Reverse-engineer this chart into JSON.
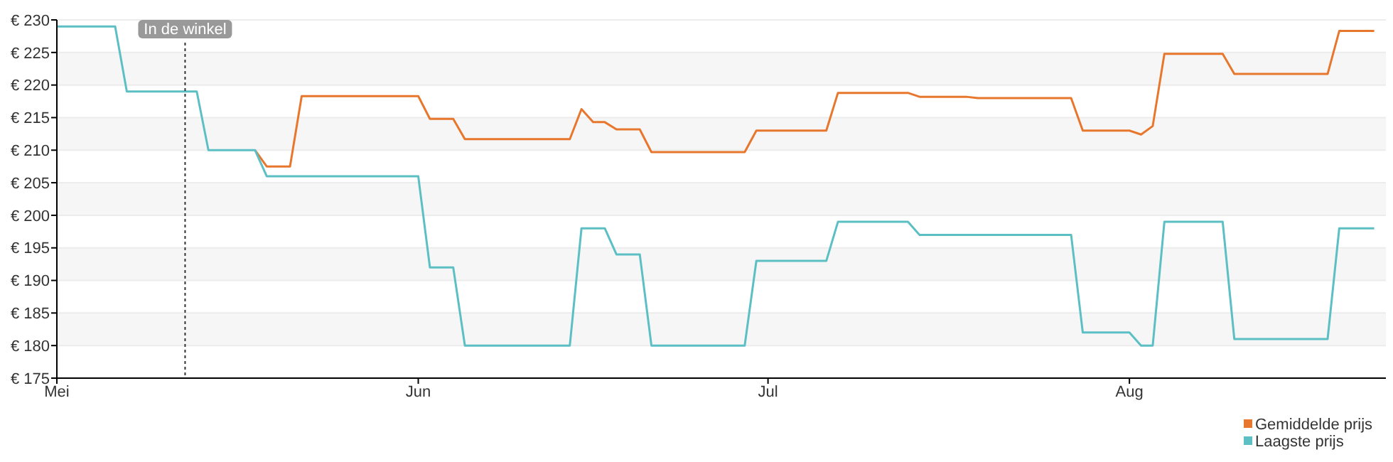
{
  "chart_data": {
    "type": "line",
    "xlim": [
      "--05-01",
      "--08-23"
    ],
    "xticks": [
      {
        "value": "--05-01",
        "label": "Mei"
      },
      {
        "value": "--06-01",
        "label": "Jun"
      },
      {
        "value": "--07-01",
        "label": "Jul"
      },
      {
        "value": "--08-01",
        "label": "Aug"
      }
    ],
    "ylim": [
      175,
      230
    ],
    "yticks": [
      {
        "value": 175,
        "label": "€ 175"
      },
      {
        "value": 180,
        "label": "€ 180"
      },
      {
        "value": 185,
        "label": "€ 185"
      },
      {
        "value": 190,
        "label": "€ 190"
      },
      {
        "value": 195,
        "label": "€ 195"
      },
      {
        "value": 200,
        "label": "€ 200"
      },
      {
        "value": 205,
        "label": "€ 205"
      },
      {
        "value": 210,
        "label": "€ 210"
      },
      {
        "value": 215,
        "label": "€ 215"
      },
      {
        "value": 220,
        "label": "€ 220"
      },
      {
        "value": 225,
        "label": "€ 225"
      },
      {
        "value": 230,
        "label": "€ 230"
      }
    ],
    "grid": "y",
    "legend": "bottom right",
    "marker": "none",
    "line_style": "solid",
    "ref_lines": [
      {
        "axis": "x",
        "value": "--05-12",
        "label": "In de winkel",
        "color": "#333333",
        "line_style": "dotted"
      }
    ],
    "series": [
      {
        "name": "Gemiddelde prijs",
        "color": "#e8772e",
        "x": [
          "--05-18",
          "--05-19",
          "--05-21",
          "--05-22",
          "--06-01",
          "--06-02",
          "--06-04",
          "--06-05",
          "--06-14",
          "--06-15",
          "--06-16",
          "--06-17",
          "--06-18",
          "--06-20",
          "--06-21",
          "--06-29",
          "--06-30",
          "--07-06",
          "--07-07",
          "--07-13",
          "--07-14",
          "--07-18",
          "--07-19",
          "--07-27",
          "--07-28",
          "--08-01",
          "--08-02",
          "--08-03",
          "--08-04",
          "--08-09",
          "--08-10",
          "--08-18",
          "--08-19",
          "--08-22"
        ],
        "values": [
          210,
          207.5,
          207.5,
          218.3,
          218.3,
          214.8,
          214.8,
          211.7,
          211.7,
          216.3,
          214.3,
          214.3,
          213.2,
          213.2,
          209.7,
          209.7,
          213,
          213,
          218.8,
          218.8,
          218.2,
          218.2,
          218,
          218,
          213,
          213,
          212.4,
          213.7,
          224.8,
          224.8,
          221.7,
          221.7,
          228.3,
          228.3
        ]
      },
      {
        "name": "Laagste prijs",
        "color": "#5bbfc4",
        "x": [
          "--05-01",
          "--05-06",
          "--05-07",
          "--05-13",
          "--05-14",
          "--05-18",
          "--05-19",
          "--06-01",
          "--06-02",
          "--06-04",
          "--06-05",
          "--06-14",
          "--06-15",
          "--06-17",
          "--06-18",
          "--06-20",
          "--06-21",
          "--06-29",
          "--06-30",
          "--07-06",
          "--07-07",
          "--07-13",
          "--07-14",
          "--07-27",
          "--07-28",
          "--08-01",
          "--08-02",
          "--08-03",
          "--08-04",
          "--08-09",
          "--08-10",
          "--08-18",
          "--08-19",
          "--08-22"
        ],
        "values": [
          229,
          229,
          219,
          219,
          210,
          210,
          206,
          206,
          192,
          192,
          180,
          180,
          198,
          198,
          194,
          194,
          180,
          180,
          193,
          193,
          199,
          199,
          197,
          197,
          182,
          182,
          180,
          180,
          199,
          199,
          181,
          181,
          198,
          198
        ]
      }
    ]
  }
}
